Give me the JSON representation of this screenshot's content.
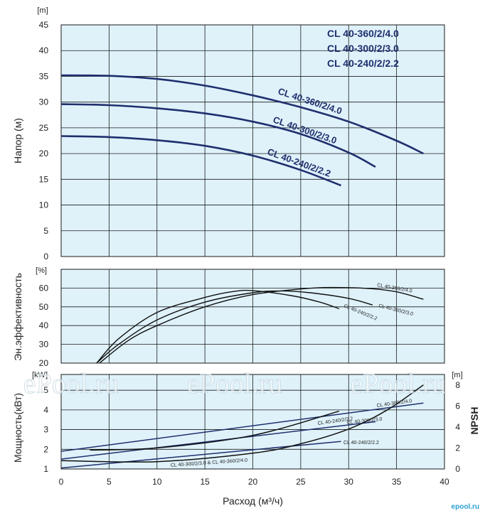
{
  "colors": {
    "panel_bg": "#dff2fa",
    "grid": "#1a1a1a",
    "navy": "#1f2f6e",
    "black_curve": "#111111"
  },
  "watermark": [
    "ePool.ru",
    "ePool.ru",
    "ePool.ru"
  ],
  "brand": "epool.ru",
  "chart_data": [
    {
      "type": "line",
      "panel": "head",
      "ylabel": "Напор (м)",
      "yunit": "[m]",
      "ylim": [
        0,
        45
      ],
      "yticks": [
        0,
        5,
        10,
        15,
        20,
        25,
        30,
        35,
        40,
        45
      ],
      "xlim": [
        0,
        40
      ],
      "legend_lines": [
        "CL 40-360/2/4.0",
        "CL 40-300/2/3.0",
        "CL 40-240/2/2.2"
      ],
      "series": [
        {
          "name": "CL 40-360/2/4.0",
          "x": [
            0,
            5,
            10,
            15,
            20,
            25,
            30,
            35,
            37.8
          ],
          "y": [
            35.2,
            35.1,
            34.5,
            33.2,
            31.3,
            29.0,
            26.2,
            22.5,
            20.0
          ]
        },
        {
          "name": "CL 40-300/2/3.0",
          "x": [
            0,
            5,
            10,
            15,
            20,
            25,
            30,
            32.8
          ],
          "y": [
            29.6,
            29.4,
            28.8,
            27.8,
            26.2,
            23.8,
            20.2,
            17.4
          ]
        },
        {
          "name": "CL 40-240/2/2.2",
          "x": [
            0,
            5,
            10,
            15,
            20,
            25,
            29.2
          ],
          "y": [
            23.4,
            23.2,
            22.6,
            21.5,
            19.6,
            16.8,
            13.8
          ]
        }
      ]
    },
    {
      "type": "line",
      "panel": "efficiency",
      "ylabel": "Эн.эффективность",
      "yunit": "[%]",
      "ylim": [
        20,
        70
      ],
      "yticks": [
        20,
        30,
        40,
        50,
        60
      ],
      "xlim": [
        0,
        40
      ],
      "series": [
        {
          "name": "CL 40-360/2/4.0",
          "x": [
            4,
            7,
            10,
            15,
            20,
            25,
            28,
            32,
            35,
            37.8
          ],
          "y": [
            20,
            32,
            40,
            50,
            56.5,
            59.5,
            60.3,
            59.8,
            58,
            54
          ]
        },
        {
          "name": "CL 40-300/2/3.0",
          "x": [
            3.7,
            6,
            10,
            15,
            20,
            23,
            26,
            30,
            32.5
          ],
          "y": [
            20,
            30,
            43,
            52.5,
            57.5,
            58.5,
            57.5,
            54.5,
            51
          ]
        },
        {
          "name": "CL 40-240/2/2.2",
          "x": [
            3.7,
            6,
            10,
            15,
            18,
            20,
            24,
            27,
            29
          ],
          "y": [
            20,
            33,
            47,
            55,
            58.2,
            58.6,
            56,
            52.5,
            49
          ]
        }
      ]
    },
    {
      "type": "line",
      "panel": "power_npsh",
      "ylabel": "Мощность(кВт)",
      "yunit": "[kW]",
      "ylim": [
        1,
        5.8
      ],
      "yticks": [
        1,
        2,
        3,
        4,
        5
      ],
      "y2label": "NPSH",
      "y2unit": "[m]",
      "y2lim": [
        0,
        9
      ],
      "y2ticks": [
        0,
        2,
        4,
        6,
        8
      ],
      "xlabel": "Расход (м³/ч)",
      "xlim": [
        0,
        40
      ],
      "xticks": [
        0,
        5,
        10,
        15,
        20,
        25,
        30,
        35,
        40
      ],
      "series": [
        {
          "name": "CL 40-360/2/4.0",
          "axis": "power",
          "x": [
            0,
            37.8
          ],
          "y": [
            1.9,
            4.35
          ]
        },
        {
          "name": "CL 40-300/2/3.0",
          "axis": "power",
          "x": [
            0,
            32.8
          ],
          "y": [
            1.5,
            3.4
          ]
        },
        {
          "name": "CL 40-240/2/2.2",
          "axis": "power",
          "x": [
            0,
            29.2
          ],
          "y": [
            1.05,
            2.4
          ]
        },
        {
          "name": "CL 40-240/2/2.2",
          "axis": "npsh",
          "x": [
            3,
            10,
            20,
            29
          ],
          "y": [
            1.8,
            2.0,
            3.2,
            5.5
          ]
        },
        {
          "name": "CL 40-300/2/3.0 & CL 40-360/2/4.0",
          "axis": "npsh",
          "x": [
            0,
            10,
            20,
            25,
            30,
            34,
            37.8
          ],
          "y": [
            0.8,
            0.7,
            1.5,
            2.4,
            3.8,
            5.6,
            8.0
          ]
        }
      ]
    }
  ]
}
